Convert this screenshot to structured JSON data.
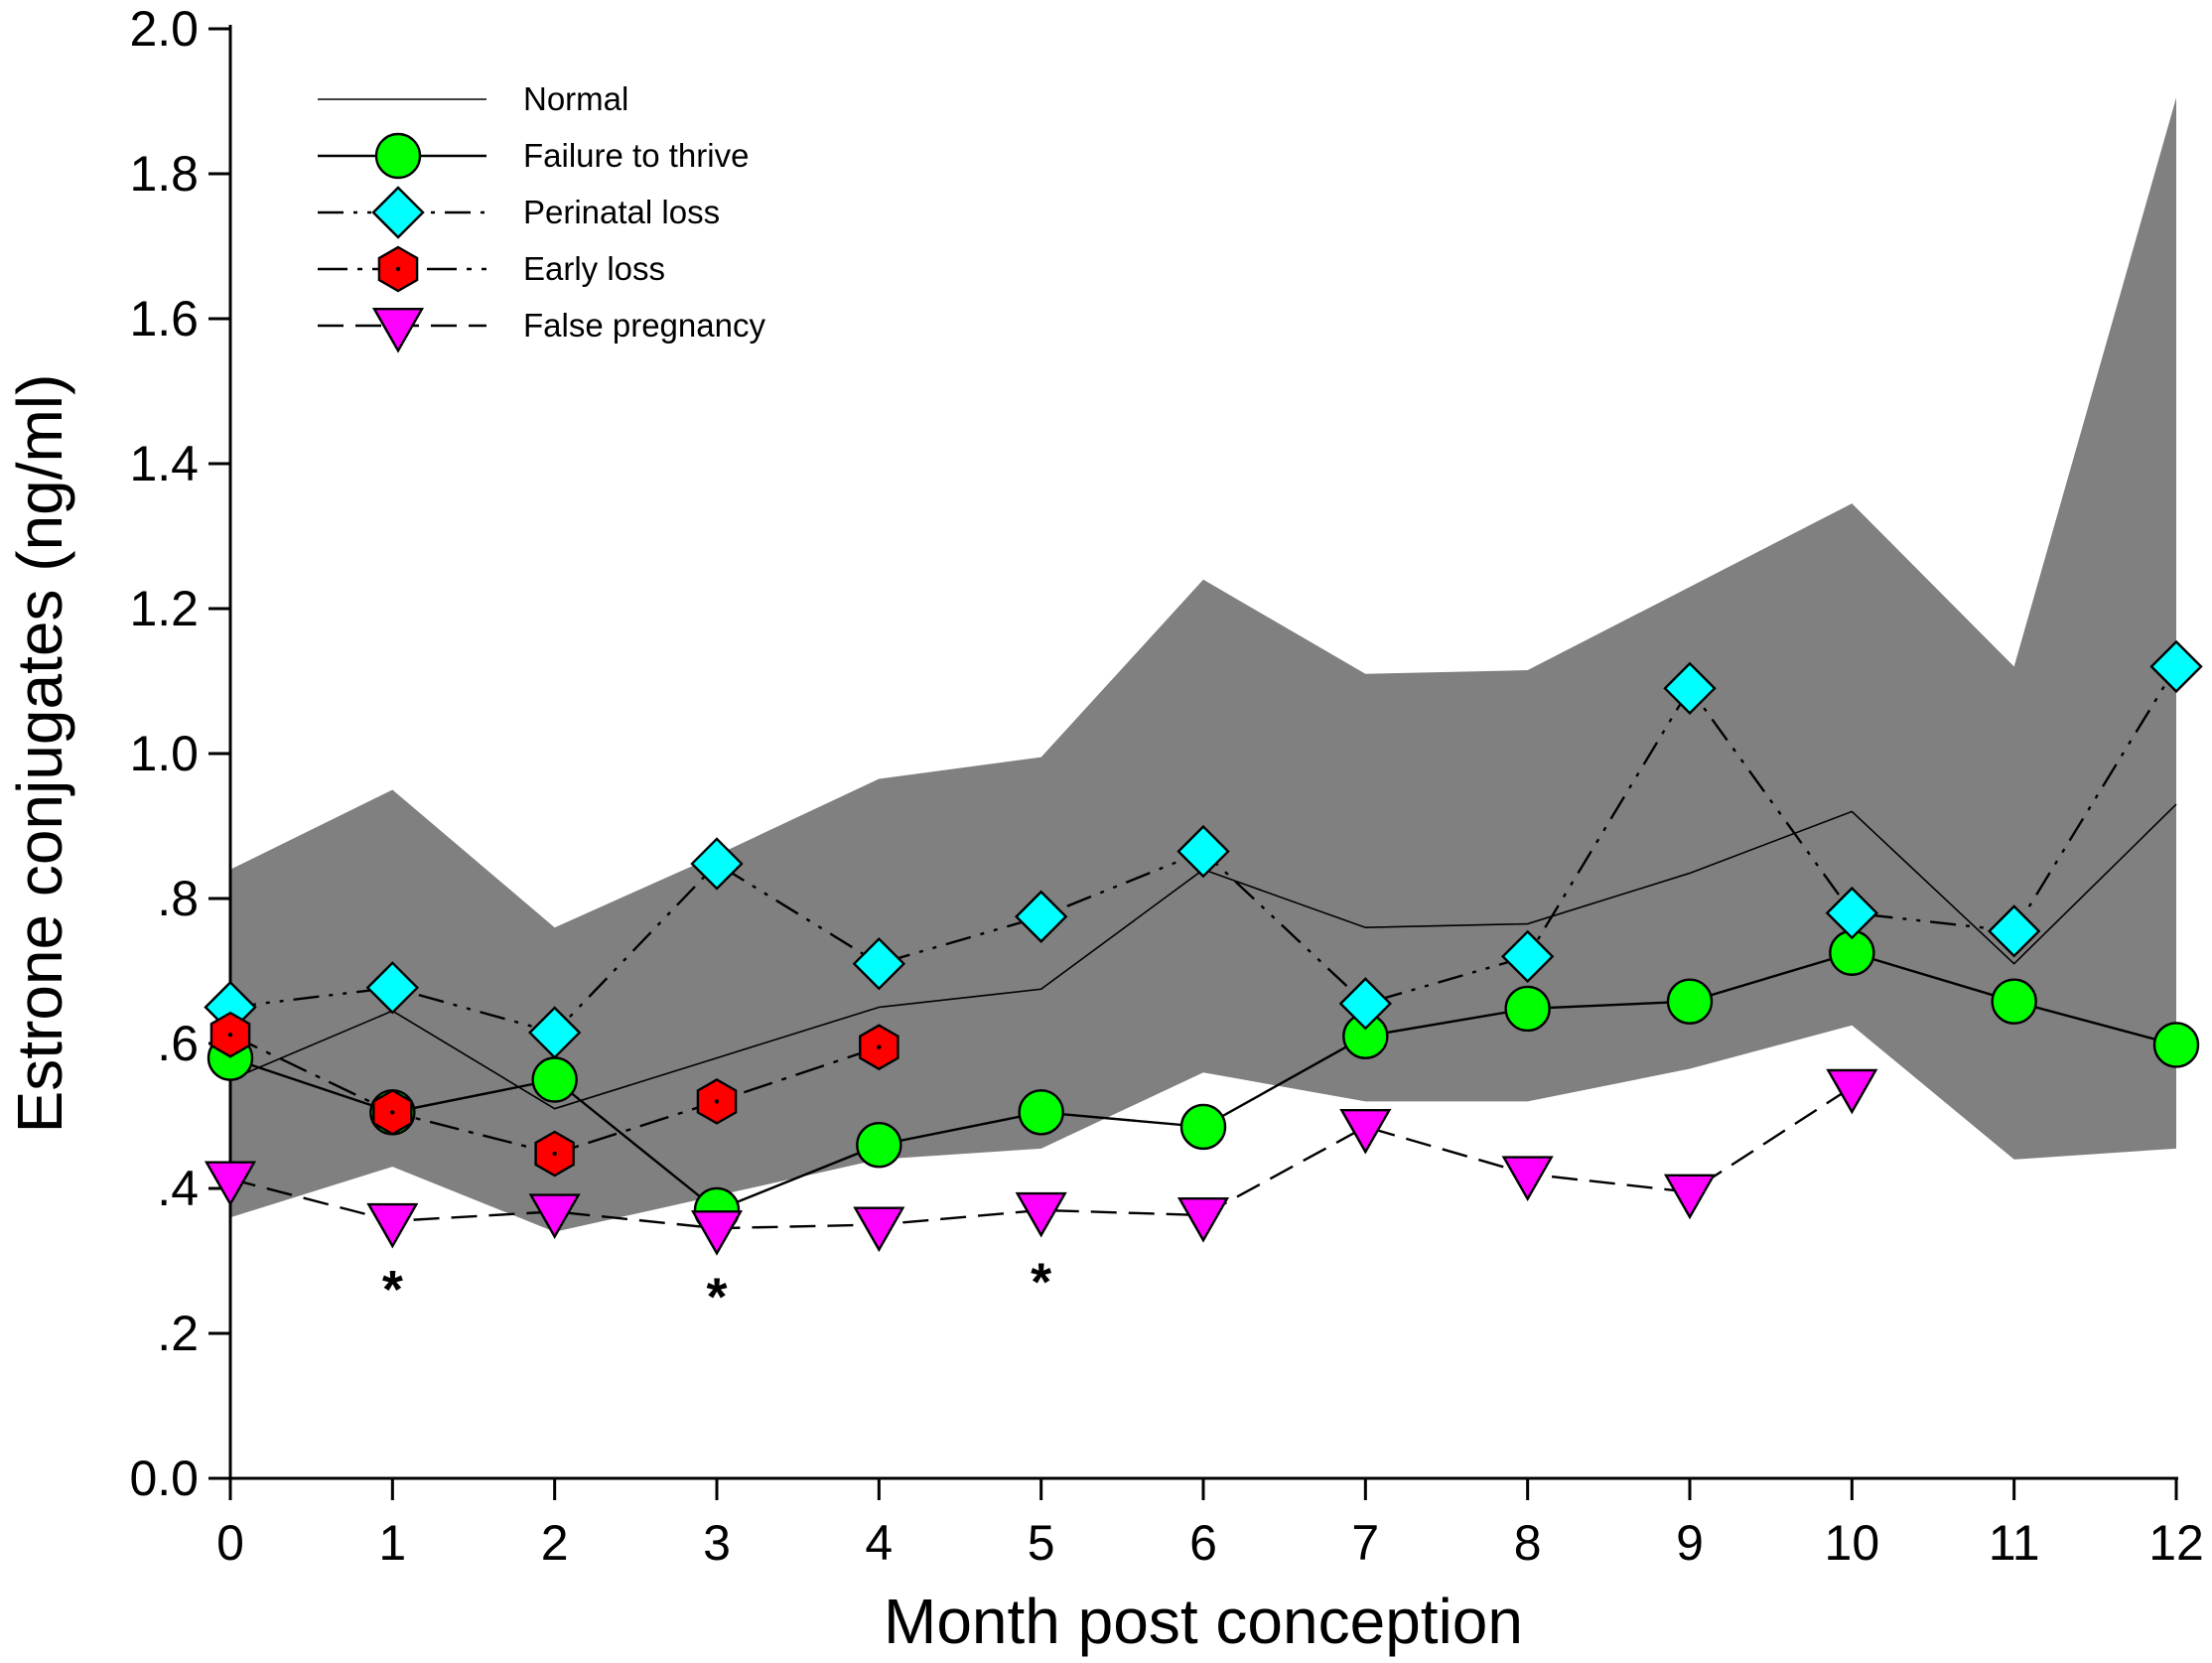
{
  "chart_data": {
    "type": "line",
    "title": "",
    "xlabel": "Month post conception",
    "ylabel": "Estrone conjugates (ng/ml)",
    "xlim": [
      0,
      12
    ],
    "ylim": [
      0,
      2.0
    ],
    "x_ticks": [
      0,
      1,
      2,
      3,
      4,
      5,
      6,
      7,
      8,
      9,
      10,
      11,
      12
    ],
    "x_tick_labels": [
      "0",
      "1",
      "2",
      "3",
      "4",
      "5",
      "6",
      "7",
      "8",
      "9",
      "10",
      "11",
      "12"
    ],
    "y_ticks": [
      0,
      0.2,
      0.4,
      0.6,
      0.8,
      1.0,
      1.2,
      1.4,
      1.6,
      1.8,
      2.0
    ],
    "y_tick_labels": [
      "0.0",
      ".2",
      ".4",
      ".6",
      ".8",
      "1.0",
      "1.2",
      "1.4",
      "1.6",
      "1.8",
      "2.0"
    ],
    "grid": false,
    "legend_position": "top-left",
    "normal_range": {
      "x": [
        0,
        1,
        2,
        3,
        4,
        5,
        6,
        7,
        8,
        9,
        10,
        11,
        12
      ],
      "upper": [
        0.84,
        0.95,
        0.76,
        0.86,
        0.965,
        0.995,
        1.24,
        1.11,
        1.115,
        1.23,
        1.345,
        1.12,
        1.905
      ],
      "lower": [
        0.36,
        0.43,
        0.34,
        0.39,
        0.44,
        0.455,
        0.56,
        0.52,
        0.52,
        0.565,
        0.625,
        0.44,
        0.455
      ],
      "color": "#808080"
    },
    "series": [
      {
        "name": "Normal",
        "marker": "none",
        "line_style": "solid-thin",
        "color": "#000000",
        "x": [
          0,
          1,
          2,
          3,
          4,
          5,
          6,
          7,
          8,
          9,
          10,
          11,
          12
        ],
        "values": [
          0.55,
          0.645,
          0.51,
          0.58,
          0.65,
          0.675,
          0.84,
          0.76,
          0.765,
          0.835,
          0.92,
          0.71,
          0.93
        ]
      },
      {
        "name": "Failure to thrive",
        "marker": "circle",
        "line_style": "solid",
        "color": "#00ff00",
        "x": [
          0,
          1,
          2,
          3,
          4,
          5,
          6,
          7,
          8,
          9,
          10,
          11,
          12
        ],
        "values": [
          0.58,
          0.505,
          0.55,
          0.37,
          0.46,
          0.505,
          0.485,
          0.61,
          0.648,
          0.658,
          0.725,
          0.658,
          0.598
        ]
      },
      {
        "name": "Perinatal loss",
        "marker": "diamond",
        "line_style": "dash-dot-dot",
        "color": "#00ffff",
        "x": [
          0,
          1,
          2,
          3,
          4,
          5,
          6,
          7,
          8,
          9,
          10,
          11,
          12
        ],
        "values": [
          0.65,
          0.677,
          0.615,
          0.848,
          0.71,
          0.775,
          0.865,
          0.655,
          0.72,
          1.09,
          0.78,
          0.755,
          1.12
        ]
      },
      {
        "name": "Early loss",
        "marker": "hexagon",
        "line_style": "dash-dot",
        "color": "#ff0000",
        "x": [
          0,
          1,
          2,
          3,
          4
        ],
        "values": [
          0.612,
          0.505,
          0.448,
          0.52,
          0.595
        ]
      },
      {
        "name": "False pregnancy",
        "marker": "triangle-down",
        "line_style": "dashed",
        "color": "#ff00ff",
        "x": [
          0,
          1,
          2,
          3,
          4,
          5,
          6,
          7,
          8,
          9,
          10
        ],
        "values": [
          0.413,
          0.355,
          0.368,
          0.345,
          0.35,
          0.37,
          0.363,
          0.485,
          0.42,
          0.395,
          0.54
        ]
      }
    ],
    "annotations": [
      {
        "text": "*",
        "x": 1,
        "y": 0.285
      },
      {
        "text": "*",
        "x": 3,
        "y": 0.275
      },
      {
        "text": "*",
        "x": 5,
        "y": 0.295
      }
    ]
  }
}
